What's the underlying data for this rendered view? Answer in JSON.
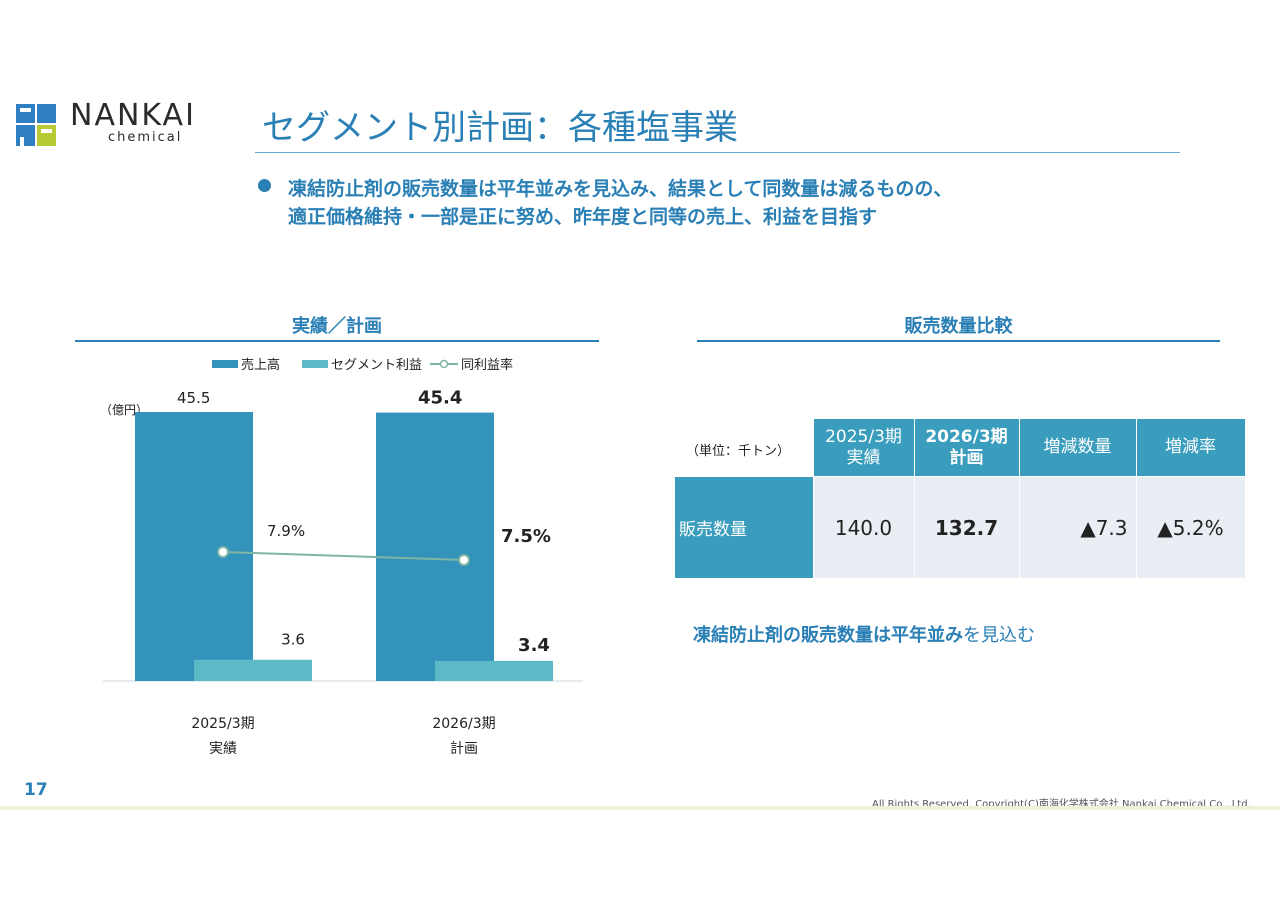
{
  "logo": {
    "word": "NANKAI",
    "sub": "chemical",
    "colors": {
      "blue": "#2e7fc1",
      "green": "#b7c933"
    }
  },
  "header": {
    "title": "セグメント別計画：各種塩事業"
  },
  "bullets": [
    "凍結防止剤の販売数量は平年並みを見込み、結果として同数量は減るものの、",
    "適正価格維持・一部是正に努め、昨年度と同等の売上、利益を目指す"
  ],
  "left_section": {
    "title": "実績／計画"
  },
  "right_section": {
    "title": "販売数量比較"
  },
  "chart_data": {
    "type": "bar",
    "unit_label": "（億円）",
    "categories": [
      {
        "line1": "2025/3期",
        "line2": "実績"
      },
      {
        "line1": "2026/3期",
        "line2": "計画"
      }
    ],
    "series": [
      {
        "name": "売上高",
        "values": [
          45.5,
          45.4
        ],
        "labels": [
          "45.5",
          "45.4"
        ],
        "color": "#3393bb"
      },
      {
        "name": "セグメント利益",
        "values": [
          3.6,
          3.4
        ],
        "labels": [
          "3.6",
          "3.4"
        ],
        "color": "#5bbac6"
      },
      {
        "name": "同利益率",
        "type": "line",
        "values": [
          7.9,
          7.5
        ],
        "labels": [
          "7.9%",
          "7.5%"
        ],
        "color": "#7fb5a4"
      }
    ],
    "ylim": [
      0,
      45.5
    ]
  },
  "table": {
    "unit": "（単位：千トン）",
    "headers": [
      {
        "line1": "2025/3期",
        "line2": "実績",
        "bold": false
      },
      {
        "line1": "2026/3期",
        "line2": "計画",
        "bold": true
      },
      {
        "line1": "増減数量",
        "line2": "",
        "bold": false
      },
      {
        "line1": "増減率",
        "line2": "",
        "bold": false
      }
    ],
    "row": {
      "label": "販売数量",
      "values": [
        "140.0",
        "132.7",
        "▲7.3",
        "▲5.2%"
      ]
    }
  },
  "note": {
    "bold_1": "凍結防止剤の販売数量は平年並み",
    "plain": "を見込む"
  },
  "footer": {
    "page_number": "17",
    "copyright": "All Rights Reserved. Copyright(C)南海化学株式会社 Nankai Chemical Co., Ltd."
  }
}
